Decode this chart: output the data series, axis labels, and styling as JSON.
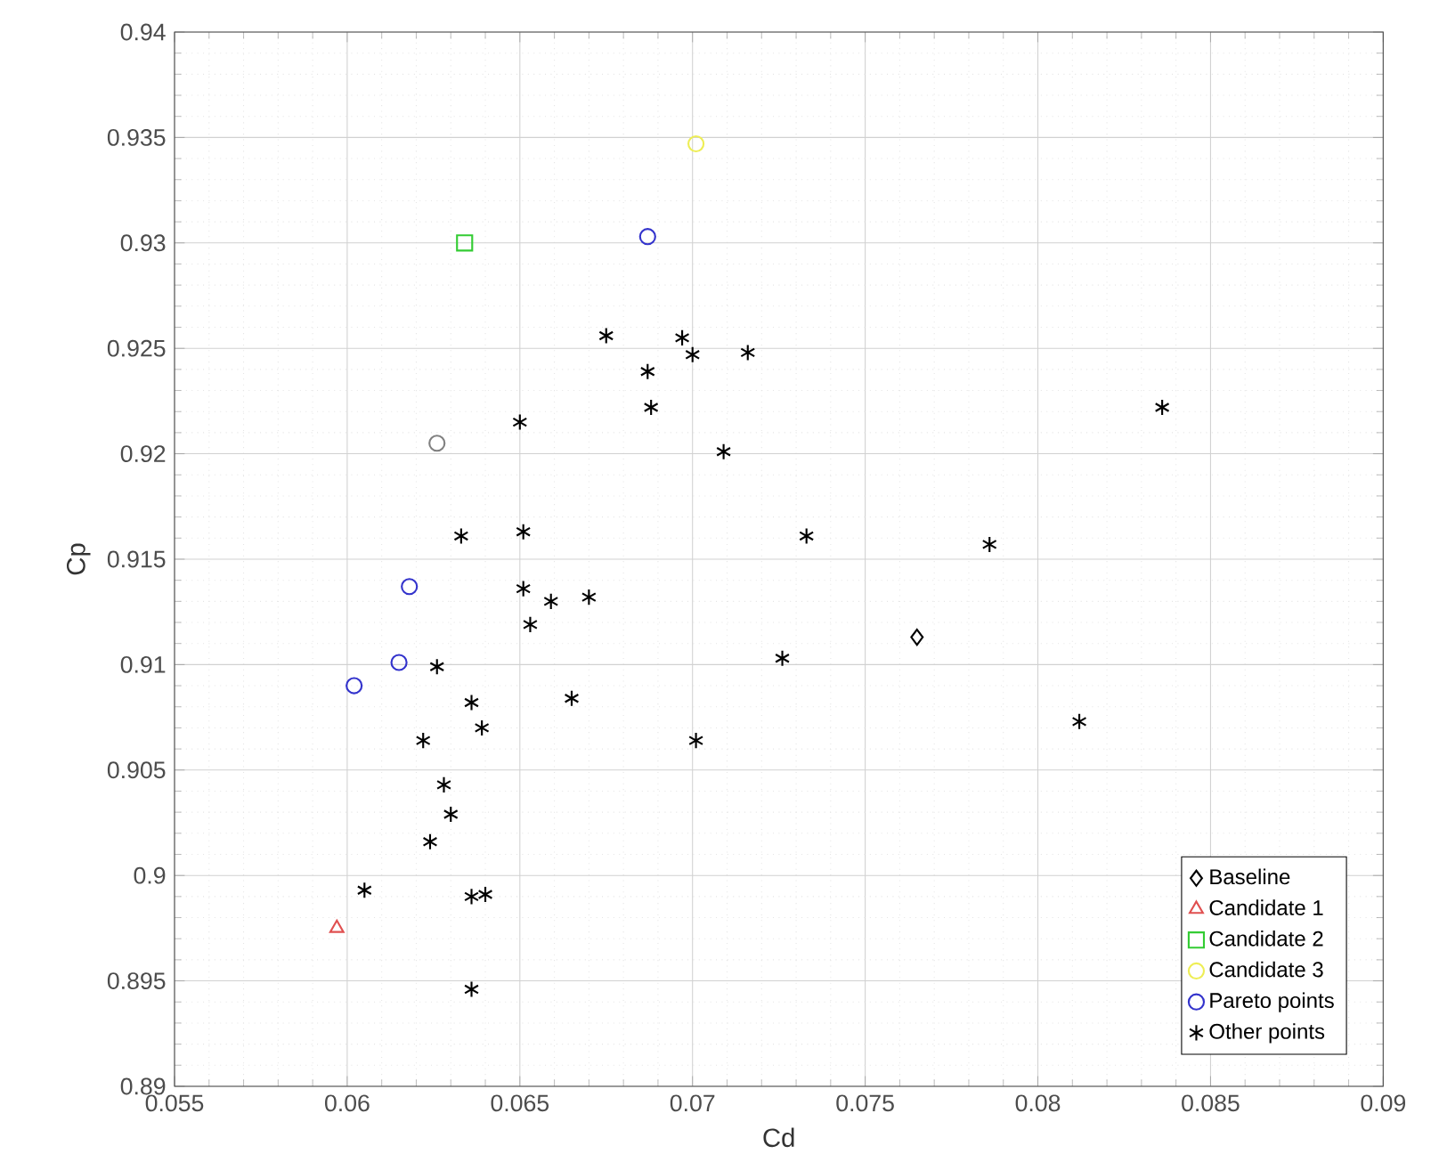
{
  "chart_data": {
    "type": "scatter",
    "xlabel": "Cd",
    "ylabel": "Cp",
    "xlim": [
      0.055,
      0.09
    ],
    "ylim": [
      0.89,
      0.94
    ],
    "xticks": [
      0.055,
      0.06,
      0.065,
      0.07,
      0.075,
      0.08,
      0.085,
      0.09
    ],
    "yticks": [
      0.89,
      0.895,
      0.9,
      0.905,
      0.91,
      0.915,
      0.92,
      0.925,
      0.93,
      0.935,
      0.94
    ],
    "grid": true,
    "legend": "bottom right",
    "series": [
      {
        "name": "Baseline",
        "color": "#000000",
        "marker": "diamond",
        "x": [
          0.0765
        ],
        "values": [
          0.9113
        ]
      },
      {
        "name": "Candidate 1",
        "color": "#e05050",
        "marker": "triangle",
        "x": [
          0.0597
        ],
        "values": [
          0.8975
        ]
      },
      {
        "name": "Candidate 2",
        "color": "#33cc33",
        "marker": "square",
        "x": [
          0.0634
        ],
        "values": [
          0.93
        ]
      },
      {
        "name": "Candidate 3",
        "color": "#eeee55",
        "marker": "circle",
        "x": [
          0.0701
        ],
        "values": [
          0.9347
        ]
      },
      {
        "name": "Pareto points",
        "color": "#3333cc",
        "marker": "circle",
        "x": [
          0.0687,
          0.0618,
          0.0615,
          0.0602
        ],
        "values": [
          0.9303,
          0.9137,
          0.9101,
          0.909
        ]
      },
      {
        "name": "Other points",
        "color": "#000000",
        "marker": "cross",
        "x": [
          0.0675,
          0.0697,
          0.07,
          0.0716,
          0.0687,
          0.0688,
          0.065,
          0.0709,
          0.0836,
          0.0633,
          0.0651,
          0.0733,
          0.0786,
          0.0651,
          0.0659,
          0.067,
          0.0653,
          0.0626,
          0.0726,
          0.0636,
          0.0665,
          0.0639,
          0.0812,
          0.0622,
          0.0701,
          0.0628,
          0.063,
          0.0624,
          0.0605,
          0.0636,
          0.064,
          0.0636
        ],
        "values": [
          0.9256,
          0.9255,
          0.9247,
          0.9248,
          0.9239,
          0.9222,
          0.9215,
          0.9201,
          0.9222,
          0.9161,
          0.9163,
          0.9161,
          0.9157,
          0.9136,
          0.913,
          0.9132,
          0.9119,
          0.9099,
          0.9103,
          0.9082,
          0.9084,
          0.907,
          0.9073,
          0.9064,
          0.9064,
          0.9043,
          0.9029,
          0.9016,
          0.8993,
          0.899,
          0.8991,
          0.8946
        ]
      },
      {
        "color": "#808080",
        "marker": "circle",
        "x": [
          0.0626
        ],
        "values": [
          0.9205
        ]
      }
    ]
  }
}
